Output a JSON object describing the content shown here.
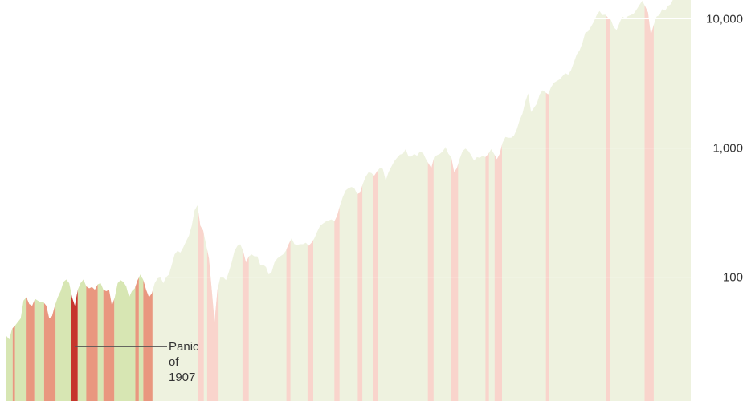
{
  "chart_data": {
    "type": "area",
    "title": "",
    "xlabel": "",
    "ylabel": "",
    "y_scale": "log",
    "ylim": [
      11,
      14000
    ],
    "x_range": [
      1896,
      2016
    ],
    "y_ticks": [
      {
        "value": 10000,
        "label": "10,000"
      },
      {
        "value": 1000,
        "label": "1,000"
      },
      {
        "value": 100,
        "label": "100"
      }
    ],
    "grid": true,
    "colors": {
      "expansion_fill": "#eef2df",
      "early_expansion_fill": "#d7e6b3",
      "early_recession_fill": "#e9977f",
      "recession_fill": "#f9d4cc",
      "highlight_fill": "#c6352c",
      "gridline": "#ffffff",
      "annotation_line": "#555555"
    },
    "series": [
      {
        "values": [
          [
            1896,
            35
          ],
          [
            1896.5,
            33
          ],
          [
            1897,
            40
          ],
          [
            1897.5,
            42
          ],
          [
            1898,
            45
          ],
          [
            1898.5,
            48
          ],
          [
            1899,
            66
          ],
          [
            1899.5,
            70
          ],
          [
            1900,
            62
          ],
          [
            1900.5,
            60
          ],
          [
            1901,
            68
          ],
          [
            1901.5,
            66
          ],
          [
            1902,
            64
          ],
          [
            1902.5,
            64
          ],
          [
            1903,
            60
          ],
          [
            1903.5,
            48
          ],
          [
            1904,
            50
          ],
          [
            1904.5,
            60
          ],
          [
            1905,
            70
          ],
          [
            1905.5,
            78
          ],
          [
            1906,
            92
          ],
          [
            1906.5,
            96
          ],
          [
            1907,
            90
          ],
          [
            1907.5,
            70
          ],
          [
            1908,
            60
          ],
          [
            1908.5,
            80
          ],
          [
            1909,
            90
          ],
          [
            1909.5,
            96
          ],
          [
            1910,
            85
          ],
          [
            1910.5,
            82
          ],
          [
            1911,
            84
          ],
          [
            1911.5,
            80
          ],
          [
            1912,
            88
          ],
          [
            1912.5,
            90
          ],
          [
            1913,
            80
          ],
          [
            1913.5,
            78
          ],
          [
            1914,
            80
          ],
          [
            1914.5,
            60
          ],
          [
            1915,
            70
          ],
          [
            1915.5,
            90
          ],
          [
            1916,
            95
          ],
          [
            1916.5,
            92
          ],
          [
            1917,
            85
          ],
          [
            1917.5,
            70
          ],
          [
            1918,
            78
          ],
          [
            1918.5,
            82
          ],
          [
            1919,
            95
          ],
          [
            1919.5,
            105
          ],
          [
            1920,
            95
          ],
          [
            1920.5,
            80
          ],
          [
            1921,
            70
          ],
          [
            1921.5,
            75
          ],
          [
            1922,
            90
          ],
          [
            1922.5,
            98
          ],
          [
            1923,
            100
          ],
          [
            1923.5,
            90
          ],
          [
            1924,
            100
          ],
          [
            1924.5,
            105
          ],
          [
            1925,
            125
          ],
          [
            1925.5,
            150
          ],
          [
            1926,
            160
          ],
          [
            1926.5,
            155
          ],
          [
            1927,
            170
          ],
          [
            1927.5,
            190
          ],
          [
            1928,
            210
          ],
          [
            1928.5,
            250
          ],
          [
            1929,
            330
          ],
          [
            1929.5,
            360
          ],
          [
            1930,
            250
          ],
          [
            1930.5,
            230
          ],
          [
            1931,
            180
          ],
          [
            1931.5,
            140
          ],
          [
            1932,
            80
          ],
          [
            1932.5,
            45
          ],
          [
            1933,
            80
          ],
          [
            1933.5,
            100
          ],
          [
            1934,
            100
          ],
          [
            1934.5,
            95
          ],
          [
            1935,
            110
          ],
          [
            1935.5,
            130
          ],
          [
            1936,
            160
          ],
          [
            1936.5,
            175
          ],
          [
            1937,
            180
          ],
          [
            1937.5,
            160
          ],
          [
            1938,
            130
          ],
          [
            1938.5,
            145
          ],
          [
            1939,
            150
          ],
          [
            1939.5,
            145
          ],
          [
            1940,
            145
          ],
          [
            1940.5,
            125
          ],
          [
            1941,
            125
          ],
          [
            1941.5,
            120
          ],
          [
            1942,
            105
          ],
          [
            1942.5,
            110
          ],
          [
            1943,
            130
          ],
          [
            1943.5,
            140
          ],
          [
            1944,
            145
          ],
          [
            1944.5,
            150
          ],
          [
            1945,
            160
          ],
          [
            1945.5,
            180
          ],
          [
            1946,
            200
          ],
          [
            1946.5,
            180
          ],
          [
            1947,
            178
          ],
          [
            1947.5,
            180
          ],
          [
            1948,
            180
          ],
          [
            1948.5,
            185
          ],
          [
            1949,
            175
          ],
          [
            1949.5,
            185
          ],
          [
            1950,
            200
          ],
          [
            1950.5,
            225
          ],
          [
            1951,
            250
          ],
          [
            1951.5,
            260
          ],
          [
            1952,
            270
          ],
          [
            1952.5,
            275
          ],
          [
            1953,
            280
          ],
          [
            1953.5,
            270
          ],
          [
            1954,
            300
          ],
          [
            1954.5,
            360
          ],
          [
            1955,
            420
          ],
          [
            1955.5,
            470
          ],
          [
            1956,
            490
          ],
          [
            1956.5,
            500
          ],
          [
            1957,
            490
          ],
          [
            1957.5,
            440
          ],
          [
            1958,
            450
          ],
          [
            1958.5,
            530
          ],
          [
            1959,
            600
          ],
          [
            1959.5,
            650
          ],
          [
            1960,
            640
          ],
          [
            1960.5,
            610
          ],
          [
            1961,
            660
          ],
          [
            1961.5,
            700
          ],
          [
            1962,
            690
          ],
          [
            1962.5,
            560
          ],
          [
            1963,
            650
          ],
          [
            1963.5,
            720
          ],
          [
            1964,
            790
          ],
          [
            1964.5,
            840
          ],
          [
            1965,
            890
          ],
          [
            1965.5,
            900
          ],
          [
            1966,
            980
          ],
          [
            1966.5,
            860
          ],
          [
            1967,
            860
          ],
          [
            1967.5,
            900
          ],
          [
            1968,
            870
          ],
          [
            1968.5,
            940
          ],
          [
            1969,
            930
          ],
          [
            1969.5,
            830
          ],
          [
            1970,
            760
          ],
          [
            1970.5,
            700
          ],
          [
            1971,
            850
          ],
          [
            1971.5,
            880
          ],
          [
            1972,
            900
          ],
          [
            1972.5,
            940
          ],
          [
            1973,
            1020
          ],
          [
            1973.5,
            900
          ],
          [
            1974,
            850
          ],
          [
            1974.5,
            650
          ],
          [
            1975,
            700
          ],
          [
            1975.5,
            830
          ],
          [
            1976,
            950
          ],
          [
            1976.5,
            990
          ],
          [
            1977,
            950
          ],
          [
            1977.5,
            880
          ],
          [
            1978,
            800
          ],
          [
            1978.5,
            850
          ],
          [
            1979,
            840
          ],
          [
            1979.5,
            870
          ],
          [
            1980,
            850
          ],
          [
            1980.5,
            900
          ],
          [
            1981,
            980
          ],
          [
            1981.5,
            900
          ],
          [
            1982,
            820
          ],
          [
            1982.5,
            900
          ],
          [
            1983,
            1100
          ],
          [
            1983.5,
            1220
          ],
          [
            1984,
            1200
          ],
          [
            1984.5,
            1200
          ],
          [
            1985,
            1250
          ],
          [
            1985.5,
            1400
          ],
          [
            1986,
            1650
          ],
          [
            1986.5,
            1850
          ],
          [
            1987,
            2300
          ],
          [
            1987.5,
            2650
          ],
          [
            1988,
            1900
          ],
          [
            1988.5,
            2050
          ],
          [
            1989,
            2200
          ],
          [
            1989.5,
            2600
          ],
          [
            1990,
            2800
          ],
          [
            1990.5,
            2700
          ],
          [
            1991,
            2600
          ],
          [
            1991.5,
            2950
          ],
          [
            1992,
            3200
          ],
          [
            1992.5,
            3300
          ],
          [
            1993,
            3400
          ],
          [
            1993.5,
            3600
          ],
          [
            1994,
            3800
          ],
          [
            1994.5,
            3700
          ],
          [
            1995,
            4000
          ],
          [
            1995.5,
            4600
          ],
          [
            1996,
            5300
          ],
          [
            1996.5,
            5700
          ],
          [
            1997,
            6500
          ],
          [
            1997.5,
            7800
          ],
          [
            1998,
            8000
          ],
          [
            1998.5,
            8700
          ],
          [
            1999,
            9500
          ],
          [
            1999.5,
            10700
          ],
          [
            2000,
            11500
          ],
          [
            2000.5,
            10700
          ],
          [
            2001,
            10800
          ],
          [
            2001.5,
            10200
          ],
          [
            2002,
            9800
          ],
          [
            2002.5,
            8600
          ],
          [
            2003,
            8200
          ],
          [
            2003.5,
            9300
          ],
          [
            2004,
            10400
          ],
          [
            2004.5,
            10100
          ],
          [
            2005,
            10500
          ],
          [
            2005.5,
            10700
          ],
          [
            2006,
            11000
          ],
          [
            2006.5,
            11800
          ],
          [
            2007,
            12800
          ],
          [
            2007.5,
            13800
          ],
          [
            2008,
            12500
          ],
          [
            2008.5,
            11200
          ],
          [
            2009,
            7500
          ],
          [
            2009.5,
            9000
          ],
          [
            2010,
            10400
          ],
          [
            2010.5,
            10700
          ],
          [
            2011,
            11900
          ],
          [
            2011.5,
            11600
          ],
          [
            2012,
            12600
          ],
          [
            2012.5,
            13000
          ],
          [
            2013,
            14500
          ],
          [
            2013.5,
            15000
          ],
          [
            2014,
            16500
          ],
          [
            2014.5,
            17000
          ],
          [
            2015,
            17800
          ],
          [
            2015.5,
            17200
          ],
          [
            2016,
            17500
          ]
        ]
      }
    ],
    "early_expansions": [
      [
        1896.0,
        1897.1
      ],
      [
        1897.5,
        1899.4
      ],
      [
        1900.9,
        1902.6
      ],
      [
        1904.6,
        1907.3
      ],
      [
        1908.5,
        1910.0
      ],
      [
        1912.0,
        1913.0
      ],
      [
        1914.9,
        1918.6
      ],
      [
        1919.2,
        1920.0
      ]
    ],
    "early_recessions": [
      [
        1897.1,
        1897.5
      ],
      [
        1899.4,
        1900.9
      ],
      [
        1902.6,
        1904.6
      ],
      [
        1910.0,
        1912.0
      ],
      [
        1913.0,
        1914.9
      ],
      [
        1918.6,
        1919.2
      ],
      [
        1920.0,
        1921.6
      ]
    ],
    "recessions": [
      [
        1929.6,
        1930.6
      ],
      [
        1931.2,
        1933.2
      ],
      [
        1937.4,
        1938.5
      ],
      [
        1945.1,
        1945.8
      ],
      [
        1948.8,
        1949.8
      ],
      [
        1953.5,
        1954.4
      ],
      [
        1957.6,
        1958.4
      ],
      [
        1960.3,
        1961.1
      ],
      [
        1969.9,
        1970.9
      ],
      [
        1973.9,
        1975.2
      ],
      [
        1980.0,
        1980.6
      ],
      [
        1981.6,
        1982.9
      ],
      [
        1990.6,
        1991.2
      ],
      [
        2001.2,
        2001.9
      ],
      [
        2007.9,
        2009.5
      ]
    ],
    "highlight_recession": [
      1907.3,
      1908.5
    ],
    "annotations": [
      {
        "lines": [
          "Panic",
          "of",
          "1907"
        ],
        "x": 1908.0,
        "y": 29
      }
    ]
  }
}
